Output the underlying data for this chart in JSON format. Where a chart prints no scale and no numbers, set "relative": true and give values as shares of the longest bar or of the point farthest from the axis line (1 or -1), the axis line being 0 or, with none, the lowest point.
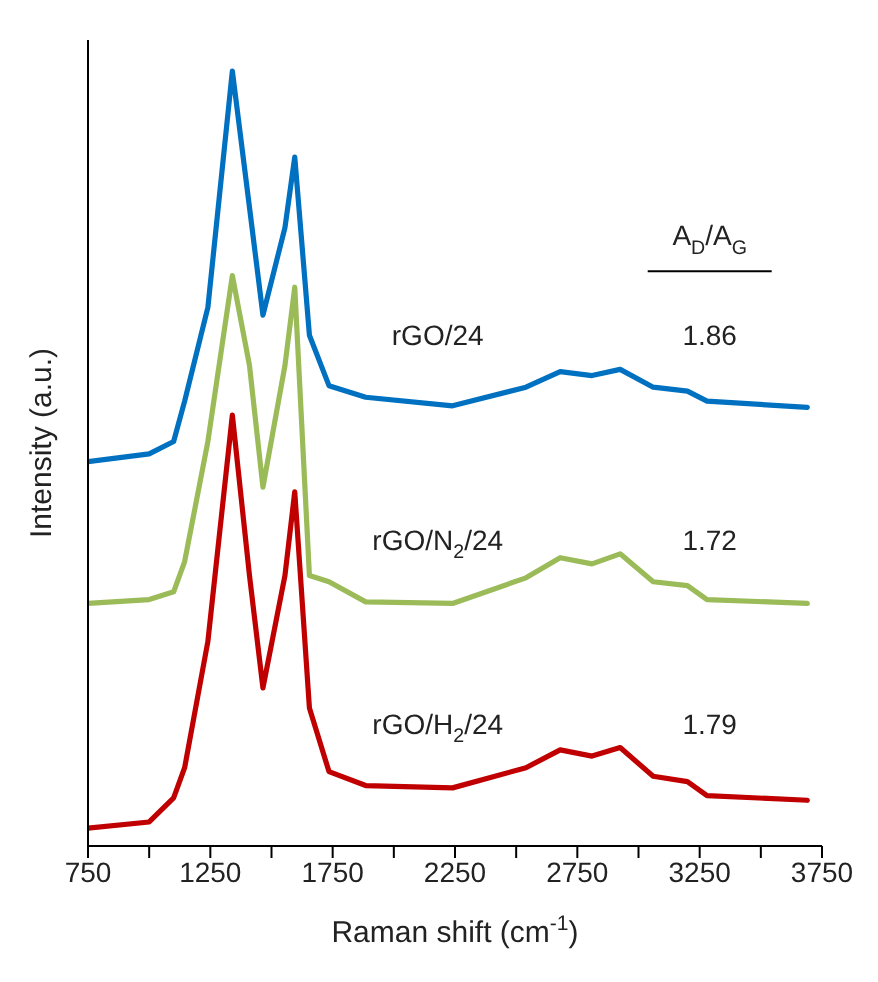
{
  "chart_data": {
    "type": "line",
    "relative": true,
    "xlabel": "Raman shift (cm$^{-1}$)",
    "ylabel": "Intensity (a.u.)",
    "x": [
      750,
      1000,
      1100,
      1145,
      1240,
      1340,
      1410,
      1465,
      1555,
      1595,
      1655,
      1735,
      1885,
      2240,
      2540,
      2680,
      2810,
      2925,
      3060,
      3200,
      3280,
      3690
    ],
    "xlim": [
      750,
      3750
    ],
    "xticks": [
      750,
      {
        "value": 1000,
        "label": null
      },
      1250,
      {
        "value": 1500,
        "label": null
      },
      1750,
      {
        "value": 2000,
        "label": null
      },
      2250,
      {
        "value": 2500,
        "label": null
      },
      2750,
      {
        "value": 3000,
        "label": null
      },
      3250,
      {
        "value": 3500,
        "label": null
      },
      3750
    ],
    "tick_labels": "x",
    "marker": "none",
    "line_style": "solid",
    "series": [
      {
        "name": "rGO/24",
        "color": "#0070c0",
        "values": [
          0.496,
          0.506,
          0.522,
          0.574,
          0.695,
          1.0,
          0.824,
          0.685,
          0.798,
          0.889,
          0.659,
          0.594,
          0.579,
          0.568,
          0.592,
          0.612,
          0.607,
          0.615,
          0.592,
          0.587,
          0.574,
          0.566
        ]
      },
      {
        "name": "rGO/N$_{2}$/24",
        "color": "#9bbb59",
        "values": [
          0.313,
          0.318,
          0.328,
          0.367,
          0.522,
          0.736,
          0.62,
          0.463,
          0.62,
          0.721,
          0.349,
          0.341,
          0.315,
          0.313,
          0.346,
          0.372,
          0.364,
          0.377,
          0.341,
          0.336,
          0.318,
          0.313
        ]
      },
      {
        "name": "rGO/H$_{2}$/24",
        "color": "#c00000",
        "values": [
          0.023,
          0.031,
          0.062,
          0.101,
          0.264,
          0.556,
          0.349,
          0.204,
          0.349,
          0.457,
          0.178,
          0.096,
          0.078,
          0.075,
          0.101,
          0.124,
          0.116,
          0.127,
          0.09,
          0.083,
          0.065,
          0.059
        ]
      }
    ],
    "annotations": [
      "A$_{D}$/A$_{G}$",
      "1.86",
      "1.72",
      "1.79"
    ]
  }
}
